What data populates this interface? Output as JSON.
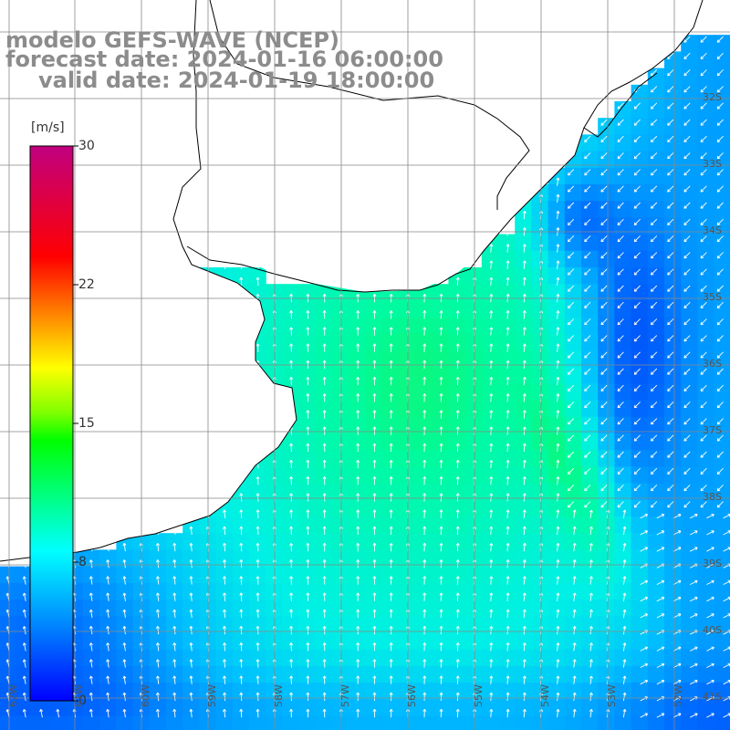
{
  "title": {
    "model": "modelo GEFS-WAVE (NCEP)",
    "forecast": "forecast date: 2024-01-16 06:00:00",
    "valid": "valid date: 2024-01-19 18:00:00"
  },
  "colorbar": {
    "unit": "[m/s]",
    "ticks": [
      "30",
      "22",
      "15",
      "8",
      "0"
    ],
    "tick_values": [
      30,
      22,
      15,
      8,
      0
    ],
    "min": 0,
    "max": 30,
    "colors": [
      "#0000ff",
      "#0080ff",
      "#00ffff",
      "#00ff00",
      "#ffff00",
      "#ff8000",
      "#ff0000",
      "#c00080"
    ]
  },
  "grid": {
    "lat_labels": [
      "32S",
      "33S",
      "34S",
      "35S",
      "36S",
      "37S",
      "38S",
      "39S",
      "40S",
      "41S"
    ],
    "lon_labels": [
      "62W",
      "61W",
      "60W",
      "59W",
      "58W",
      "57W",
      "56W",
      "55W",
      "54W",
      "53W",
      "52W"
    ]
  },
  "colors": {
    "land": "#ffffff",
    "coast": "#000000",
    "gridline": "#888888",
    "arrow": "#ffffff"
  }
}
